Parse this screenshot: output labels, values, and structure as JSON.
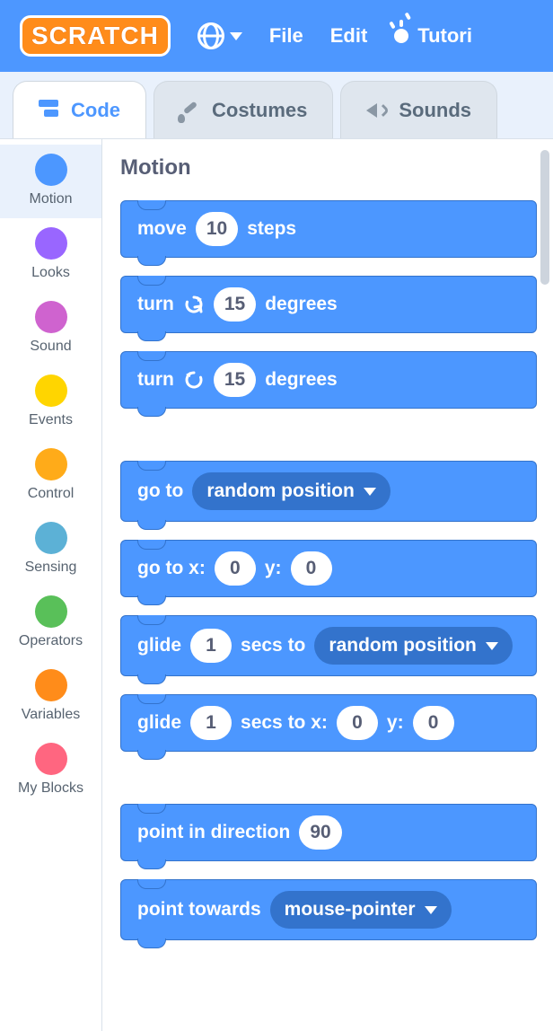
{
  "colors": {
    "menubar": "#4d97ff",
    "motion_block": "#4c97ff",
    "motion_block_border": "#3373cc",
    "dropdown_bg": "#3373cc",
    "text_heading": "#575e75"
  },
  "menubar": {
    "logo_text": "SCRATCH",
    "file": "File",
    "edit": "Edit",
    "tutorials": "Tutori"
  },
  "tabs": {
    "code": "Code",
    "costumes": "Costumes",
    "sounds": "Sounds"
  },
  "categories": [
    {
      "name": "Motion",
      "color": "#4c97ff",
      "active": true
    },
    {
      "name": "Looks",
      "color": "#9966ff",
      "active": false
    },
    {
      "name": "Sound",
      "color": "#cf63cf",
      "active": false
    },
    {
      "name": "Events",
      "color": "#ffd500",
      "active": false
    },
    {
      "name": "Control",
      "color": "#ffab19",
      "active": false
    },
    {
      "name": "Sensing",
      "color": "#5cb1d6",
      "active": false
    },
    {
      "name": "Operators",
      "color": "#59c059",
      "active": false
    },
    {
      "name": "Variables",
      "color": "#ff8c1a",
      "active": false
    },
    {
      "name": "My Blocks",
      "color": "#ff6680",
      "active": false
    }
  ],
  "workspace": {
    "heading": "Motion"
  },
  "blocks": {
    "move": {
      "t1": "move",
      "v": "10",
      "t2": "steps"
    },
    "turn_cw": {
      "t1": "turn",
      "v": "15",
      "t2": "degrees"
    },
    "turn_ccw": {
      "t1": "turn",
      "v": "15",
      "t2": "degrees"
    },
    "goto_menu": {
      "t1": "go to",
      "menu": "random position"
    },
    "goto_xy": {
      "t1": "go to x:",
      "x": "0",
      "t2": "y:",
      "y": "0"
    },
    "glide_menu": {
      "t1": "glide",
      "secs": "1",
      "t2": "secs to",
      "menu": "random position"
    },
    "glide_xy": {
      "t1": "glide",
      "secs": "1",
      "t2": "secs to x:",
      "x": "0",
      "t3": "y:",
      "y": "0"
    },
    "point_dir": {
      "t1": "point in direction",
      "v": "90"
    },
    "point_towards": {
      "t1": "point towards",
      "menu": "mouse-pointer"
    }
  }
}
